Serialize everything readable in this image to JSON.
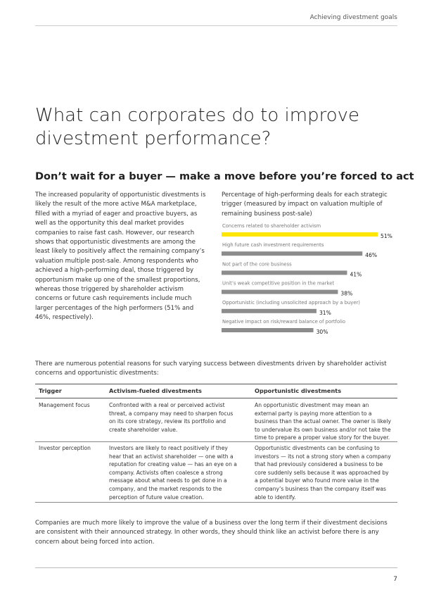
{
  "header": {
    "section": "Achieving divestment goals"
  },
  "title": "What can corporates do to improve divestment performance?",
  "subtitle": "Don’t wait for a buyer — make a move before you’re forced to act",
  "body": "The increased popularity of opportunistic divestments is likely the result of the more active M&A marketplace, filled with a myriad of eager and proactive buyers, as well as the opportunity this deal market provides companies to raise fast cash. However, our research shows that opportunistic divestments are among the least likely to positively affect the remaining company’s valuation multiple post-sale. Among respondents who achieved a high-performing deal, those triggered by opportunism make up one of the smallest proportions, whereas those triggered by shareholder activism concerns or future cash requirements include much larger percentages of the high performers (51% and 46%, respectively).",
  "chart_data": {
    "type": "bar",
    "orientation": "horizontal",
    "title": "Percentage of high-performing deals for each strategic trigger (measured by impact on valuation multiple of remaining business post-sale)",
    "categories": [
      "Concerns related to shareholder activism",
      "High future cash investment requirements",
      "Not part of the core business",
      "Unit’s weak competitive position in the market",
      "Opportunistic (including unsolicited approach by a buyer)",
      "Negative impact on risk/reward balance of portfolio"
    ],
    "values": [
      51,
      46,
      41,
      38,
      31,
      30
    ],
    "value_labels": [
      "51%",
      "46%",
      "41%",
      "38%",
      "31%",
      "30%"
    ],
    "colors": [
      "#ffe600",
      "#8c8c8c",
      "#8c8c8c",
      "#8c8c8c",
      "#8c8c8c",
      "#8c8c8c"
    ]
  },
  "intro": "There are numerous potential reasons for such varying success between divestments driven by shareholder activist concerns and opportunistic divestments:",
  "table": {
    "headers": [
      "Trigger",
      "Activism-fueled divestments",
      "Opportunistic divestments"
    ],
    "rows": [
      [
        "Management focus",
        "Confronted with a real or perceived activist threat, a company may need to sharpen focus on its core strategy, review its portfolio and create shareholder value.",
        "An opportunistic divestment may mean an external party is paying more attention to a business than the actual owner. The owner is likely to undervalue its own business and/or not take the time to prepare a proper value story for the buyer."
      ],
      [
        "Investor perception",
        "Investors are likely to react positively if they hear that an activist shareholder — one with a reputation for creating value — has an eye on a company. Activists often coalesce a strong message about what needs to get done in a company, and the market responds to the perception of future value creation.",
        "Opportunistic divestments can be confusing to investors — its not a strong story when a company that had previously considered a business to be core suddenly sells because it was approached by a potential buyer who found more value in the company’s business than the company itself was able to identify."
      ]
    ]
  },
  "closing": "Companies are much more likely to improve the value of a business over the long term if their divestment decisions are consistent with their announced strategy. In other words, they should think like an activist before there is any concern about being forced into action.",
  "page_number": "7"
}
